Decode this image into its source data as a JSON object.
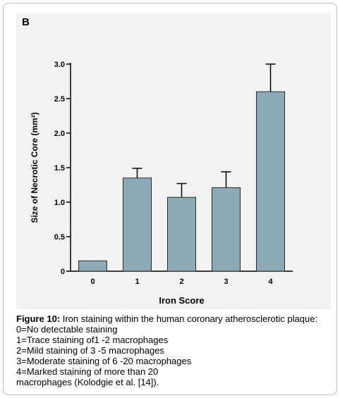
{
  "panel_label": "B",
  "chart_data": {
    "type": "bar",
    "categories": [
      "0",
      "1",
      "2",
      "3",
      "4"
    ],
    "values": [
      0.15,
      1.35,
      1.07,
      1.21,
      2.6
    ],
    "error": [
      0.0,
      0.14,
      0.2,
      0.23,
      0.4
    ],
    "xlabel": "Iron Score",
    "ylabel": "Size of Necrotic Core (mm²)",
    "ylim": [
      0,
      3.0
    ],
    "yticks": [
      "0",
      "0.5",
      "1.0",
      "1.5",
      "2.0",
      "2.5",
      "3.0"
    ],
    "bar_color": "#8ea9b8",
    "grid": false
  },
  "caption": {
    "figure_label": "Figure 10:",
    "title": " Iron staining within the human coronary atherosclerotic plaque:",
    "lines": [
      "0=No detectable staining",
      "1=Trace staining of1 -2 macrophages",
      "2=Mild staining of 3 -5 macrophages",
      "3=Moderate staining of 6 -20 macrophages",
      "4=Marked staining of more than 20",
      "macrophages (Kolodgie et al. [14])."
    ]
  }
}
